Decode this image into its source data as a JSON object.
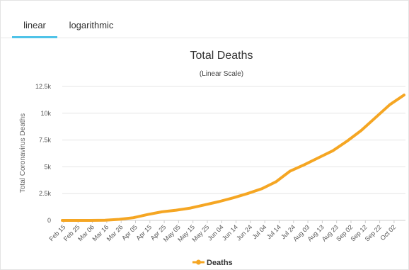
{
  "tabs": [
    {
      "label": "linear",
      "active": true
    },
    {
      "label": "logarithmic",
      "active": false
    }
  ],
  "accent_color": "#4fc3e8",
  "series_color": "#f5a623",
  "chart_data": {
    "type": "line",
    "title": "Total Deaths",
    "subtitle": "(Linear Scale)",
    "xlabel": "",
    "ylabel": "Total Coronavirus Deaths",
    "ylim": [
      0,
      12500
    ],
    "y_ticks": [
      {
        "value": 0,
        "label": "0"
      },
      {
        "value": 2500,
        "label": "2.5k"
      },
      {
        "value": 5000,
        "label": "5k"
      },
      {
        "value": 7500,
        "label": "7.5k"
      },
      {
        "value": 10000,
        "label": "10k"
      },
      {
        "value": 12500,
        "label": "12.5k"
      }
    ],
    "x_tick_labels": [
      "Feb 15",
      "Feb 25",
      "Mar 06",
      "Mar 16",
      "Mar 26",
      "Apr 05",
      "Apr 15",
      "Apr 25",
      "May 05",
      "May 15",
      "May 25",
      "Jun 04",
      "Jun 14",
      "Jun 24",
      "Jul 04",
      "Jul 14",
      "Jul 24",
      "Aug 03",
      "Aug 13",
      "Aug 23",
      "Sep 02",
      "Sep 12",
      "Sep 22",
      "Oct 02"
    ],
    "grid": true,
    "legend": "bottom-center",
    "series": [
      {
        "name": "Deaths",
        "x": [
          "Feb 15",
          "Feb 25",
          "Mar 06",
          "Mar 16",
          "Mar 26",
          "Apr 05",
          "Apr 15",
          "Apr 25",
          "May 05",
          "May 15",
          "May 25",
          "Jun 04",
          "Jun 14",
          "Jun 24",
          "Jul 04",
          "Jul 14",
          "Jul 24",
          "Aug 03",
          "Aug 13",
          "Aug 23",
          "Sep 02",
          "Sep 12",
          "Sep 22",
          "Oct 02",
          "Oct 12"
        ],
        "values": [
          0,
          0,
          0,
          10,
          100,
          250,
          550,
          800,
          950,
          1150,
          1450,
          1750,
          2100,
          2500,
          2950,
          3600,
          4600,
          5200,
          5850,
          6500,
          7400,
          8400,
          9600,
          10800,
          11700
        ]
      }
    ]
  }
}
